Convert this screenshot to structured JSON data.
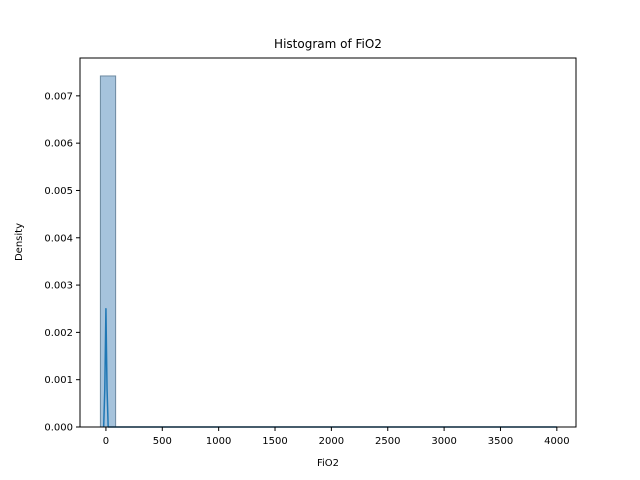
{
  "chart_data": {
    "type": "bar",
    "title": "Histogram of FiO2",
    "xlabel": "FiO2",
    "ylabel": "Density",
    "xlim": [
      -230,
      4170
    ],
    "ylim": [
      0,
      0.0078
    ],
    "xticks": [
      0,
      500,
      1000,
      1500,
      2000,
      2500,
      3000,
      3500,
      4000
    ],
    "yticks": [
      0.0,
      0.001,
      0.002,
      0.003,
      0.004,
      0.005,
      0.006,
      0.007
    ],
    "ytick_labels": [
      "0.000",
      "0.001",
      "0.002",
      "0.003",
      "0.004",
      "0.005",
      "0.006",
      "0.007"
    ],
    "grid": false,
    "histogram": {
      "bin_start": -49,
      "bin_width": 135,
      "bin_count": 30,
      "densities": [
        0.00742,
        0,
        0,
        0,
        0,
        0,
        0,
        0,
        0,
        0,
        0,
        0,
        0,
        0,
        0,
        0,
        0,
        0,
        0,
        0,
        0,
        0,
        0,
        0,
        0,
        0,
        0,
        0,
        0,
        0
      ],
      "fill_color": "#a6c3dc",
      "edge_color": "#6e8aa0"
    },
    "kde": {
      "color": "#1f77b4",
      "x": [
        -20,
        -10,
        0,
        5,
        10,
        20,
        30,
        50,
        100,
        500,
        1000,
        2000,
        3000,
        4000
      ],
      "y": [
        0.0,
        0.0008,
        0.0025,
        0.0016,
        0.0008,
        0.0,
        0.0,
        0.0,
        0.0,
        0.0,
        0.0,
        0.0,
        0.0,
        0.0
      ]
    }
  }
}
